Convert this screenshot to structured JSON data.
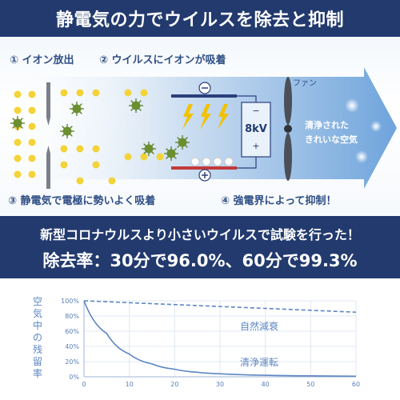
{
  "header": {
    "title": "静電気の力でウイルスを除去と抑制"
  },
  "diagram": {
    "step1": "① イオン放出",
    "step2": "② ウイルスにイオンが吸着",
    "step3": "③ 静電気で電極に勢いよく吸着",
    "step4": "④ 強電界によって抑制！",
    "fan_label": "ファン",
    "voltage": "8kV",
    "minus_sign": "−",
    "plus_sign": "+",
    "clean_air_line1": "清浄された",
    "clean_air_line2": "きれいな空気",
    "minus_circle": "⊖",
    "plus_circle": "⊕"
  },
  "band": {
    "line1": "新型コロナウルスより小さいウイルスで試験を行った！",
    "line2": "除去率：30分で96.0%、60分で99.3%"
  },
  "chart_data": {
    "type": "line",
    "ylabel": "空気中の残留率",
    "x_ticks": [
      "0",
      "10",
      "20",
      "30",
      "40",
      "50",
      "60"
    ],
    "y_ticks": [
      "0%",
      "20%",
      "40%",
      "60%",
      "80%",
      "100%"
    ],
    "xlim": [
      0,
      60
    ],
    "ylim": [
      0,
      100
    ],
    "series": [
      {
        "name": "自然減衰",
        "style": "dashed",
        "x": [
          0,
          10,
          20,
          30,
          40,
          50,
          60
        ],
        "y": [
          100,
          97.5,
          95,
          92.5,
          90,
          87.5,
          85
        ]
      },
      {
        "name": "清浄運転",
        "style": "solid",
        "x": [
          0,
          5,
          10,
          15,
          20,
          25,
          30,
          40,
          50,
          60
        ],
        "y": [
          100,
          57,
          30,
          17,
          10,
          6,
          4,
          2,
          1.2,
          0.7
        ]
      }
    ],
    "colors": {
      "line": "#5d86c2"
    }
  }
}
